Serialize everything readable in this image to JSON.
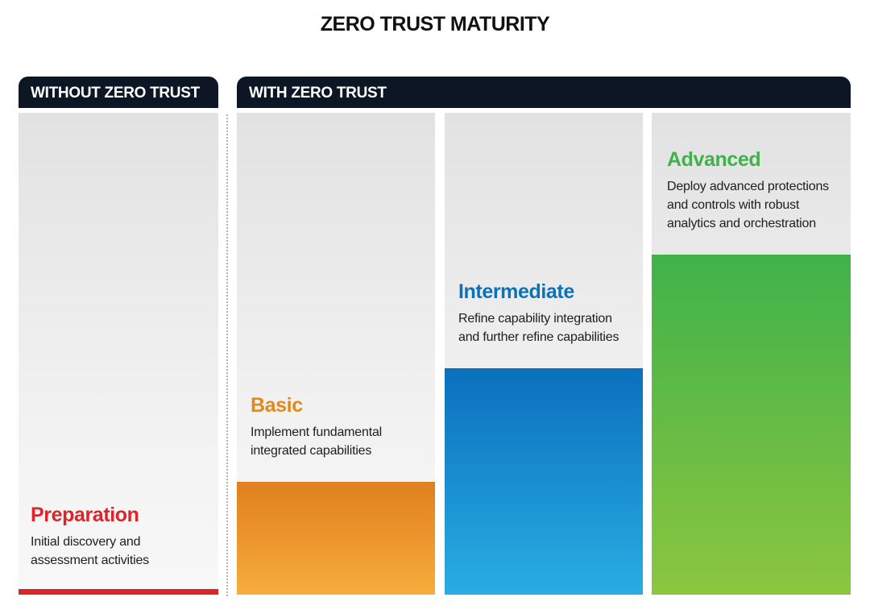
{
  "title": "ZERO TRUST MATURITY",
  "headers": {
    "without": "WITHOUT ZERO TRUST",
    "with": "WITH ZERO TRUST"
  },
  "stages": [
    {
      "name": "Preparation",
      "description_lines": [
        "Initial discovery and",
        "assessment activities"
      ],
      "color": "#d9262b"
    },
    {
      "name": "Basic",
      "description_lines": [
        "Implement fundamental",
        "integrated capabilities"
      ],
      "color": "#e08a1e"
    },
    {
      "name": "Intermediate",
      "description_lines": [
        "Refine capability integration",
        "and further refine capabilities"
      ],
      "color": "#0a72ba"
    },
    {
      "name": "Advanced",
      "description_lines": [
        "Deploy advanced protections",
        "and controls with robust",
        "analytics and orchestration"
      ],
      "color": "#3fb24a"
    }
  ],
  "colors": {
    "header_bg": "#0d1624",
    "panel_bg": "#ececec"
  }
}
